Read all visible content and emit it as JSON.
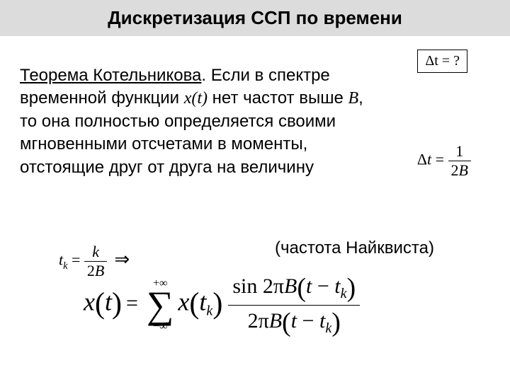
{
  "colors": {
    "title_bg": "#dcdcdc",
    "title_text": "#000000",
    "body_bg": "#ffffff",
    "text": "#000000",
    "border": "#000000"
  },
  "title": "Дискретизация ССП по времени",
  "delta_box": "Δt = ?",
  "paragraph": {
    "theorem_name": "Теорема Котельникова",
    "part1": ". Если в спектре временной функции ",
    "xt": "x(t)",
    "part2": "  нет частот выше ",
    "B": "B",
    "part3": ", то она полностью определяется своими мгновенными отсчетами в моменты, отстоящие друг от друга на величину"
  },
  "nyquist": {
    "lhs": "Δt =",
    "num": "1",
    "den": "2B",
    "label": "(частота Найквиста)"
  },
  "tk": {
    "lhs_var": "t",
    "lhs_sub": "k",
    "eq": " = ",
    "num": "k",
    "den": "2B",
    "implies": "⇒"
  },
  "big": {
    "x": "x",
    "t": "t",
    "eq": "=",
    "sum_top": "+∞",
    "sum_bot": "−∞",
    "xtk_x": "x",
    "tk_t": "t",
    "tk_sub": "k",
    "sin": "sin",
    "twopi": " 2π",
    "B": "B",
    "minus": " − ",
    "frac_num_prefix": "sin 2πB",
    "frac_den_prefix": "2πB"
  }
}
